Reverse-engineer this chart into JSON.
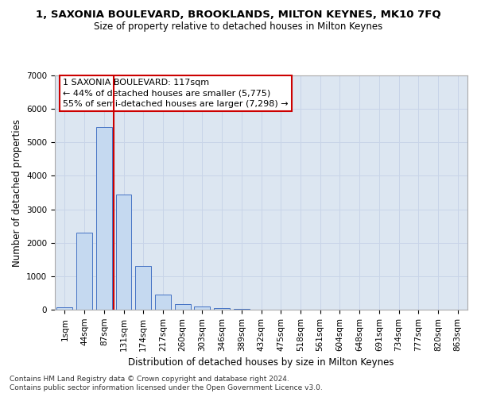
{
  "title": "1, SAXONIA BOULEVARD, BROOKLANDS, MILTON KEYNES, MK10 7FQ",
  "subtitle": "Size of property relative to detached houses in Milton Keynes",
  "xlabel": "Distribution of detached houses by size in Milton Keynes",
  "ylabel": "Number of detached properties",
  "footer_line1": "Contains HM Land Registry data © Crown copyright and database right 2024.",
  "footer_line2": "Contains public sector information licensed under the Open Government Licence v3.0.",
  "bar_labels": [
    "1sqm",
    "44sqm",
    "87sqm",
    "131sqm",
    "174sqm",
    "217sqm",
    "260sqm",
    "303sqm",
    "346sqm",
    "389sqm",
    "432sqm",
    "475sqm",
    "518sqm",
    "561sqm",
    "604sqm",
    "648sqm",
    "691sqm",
    "734sqm",
    "777sqm",
    "820sqm",
    "863sqm"
  ],
  "bar_values": [
    75,
    2300,
    5450,
    3430,
    1310,
    460,
    155,
    85,
    50,
    30,
    0,
    0,
    0,
    0,
    0,
    0,
    0,
    0,
    0,
    0,
    0
  ],
  "bar_color": "#c5d9f0",
  "bar_edge_color": "#4472c4",
  "grid_color": "#c8d4e8",
  "background_color": "#dce6f1",
  "annotation_line1": "1 SAXONIA BOULEVARD: 117sqm",
  "annotation_line2": "← 44% of detached houses are smaller (5,775)",
  "annotation_line3": "55% of semi-detached houses are larger (7,298) →",
  "vline_color": "#cc0000",
  "vline_x_index": 2.5,
  "ylim": [
    0,
    7000
  ],
  "yticks": [
    0,
    1000,
    2000,
    3000,
    4000,
    5000,
    6000,
    7000
  ],
  "title_fontsize": 9.5,
  "subtitle_fontsize": 8.5,
  "ylabel_fontsize": 8.5,
  "xlabel_fontsize": 8.5,
  "tick_fontsize": 7.5,
  "footer_fontsize": 6.5,
  "annot_fontsize": 8.0
}
